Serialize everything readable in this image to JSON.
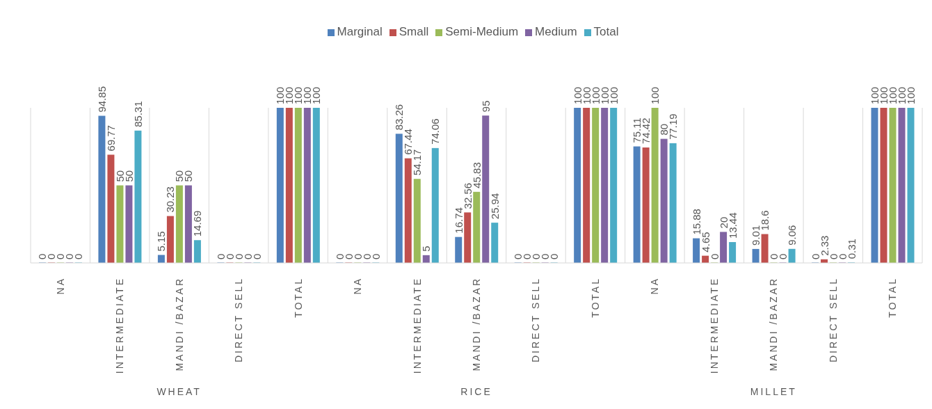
{
  "chart_data": {
    "type": "bar",
    "categories": [
      "NA",
      "INTERMEDIATE",
      "MANDI /BAZAR",
      "DIRECT SELL",
      "TOTAL",
      "NA",
      "INTERMEDIATE",
      "MANDI /BAZAR",
      "DIRECT SELL",
      "TOTAL",
      "NA",
      "INTERMEDIATE",
      "MANDI /BAZAR",
      "DIRECT SELL",
      "TOTAL"
    ],
    "series": [
      {
        "name": "Marginal",
        "color": "#4f81bd",
        "values": [
          0,
          94.85,
          5.15,
          0,
          100,
          0,
          83.26,
          16.74,
          0,
          100,
          75.11,
          15.88,
          9.01,
          0,
          100
        ]
      },
      {
        "name": "Small",
        "color": "#c0504d",
        "values": [
          0,
          69.77,
          30.23,
          0,
          100,
          0,
          67.44,
          32.56,
          0,
          100,
          74.42,
          4.65,
          18.6,
          2.33,
          100
        ]
      },
      {
        "name": "Semi-Medium",
        "color": "#9bbb59",
        "values": [
          0,
          50,
          50,
          0,
          100,
          0,
          54.17,
          45.83,
          0,
          100,
          100,
          0,
          0,
          0,
          100
        ]
      },
      {
        "name": "Medium",
        "color": "#8064a2",
        "values": [
          0,
          50,
          50,
          0,
          100,
          0,
          5,
          95,
          0,
          100,
          80,
          20,
          0,
          0,
          100
        ]
      },
      {
        "name": "Total",
        "color": "#4bacc6",
        "values": [
          0,
          85.31,
          14.69,
          0,
          100,
          0,
          74.06,
          25.94,
          0,
          100,
          77.19,
          13.44,
          9.06,
          0.31,
          100
        ]
      }
    ],
    "annotations": [
      "WHEAT",
      "RICE",
      "MILLET"
    ],
    "data_labels": true,
    "grid": "x",
    "legend": "top"
  }
}
